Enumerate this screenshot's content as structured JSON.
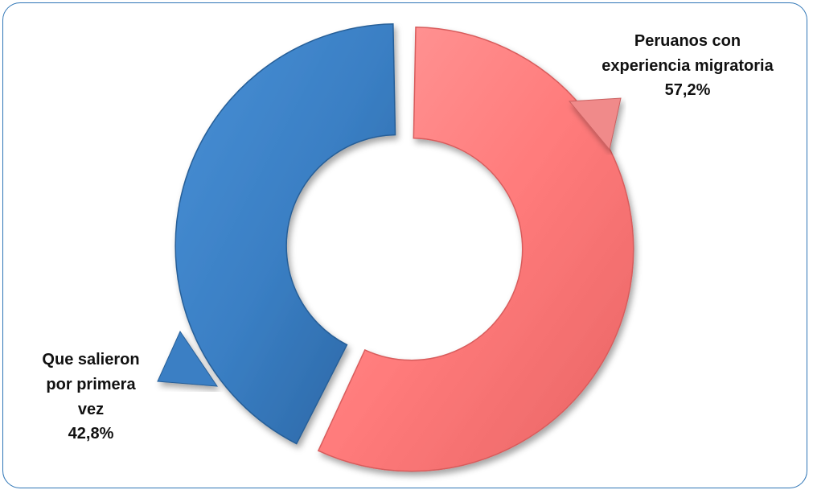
{
  "chart_data": {
    "type": "pie",
    "variant": "donut",
    "title": "",
    "slices": [
      {
        "label_lines": [
          "Peruanos con",
          "experiencia migratoria"
        ],
        "value_label": "57,2%",
        "value": 57.2,
        "color": "#ff7b7b"
      },
      {
        "label_lines": [
          "Que salieron",
          "por primera",
          "vez"
        ],
        "value_label": "42,8%",
        "value": 42.8,
        "color": "#3a7fc4"
      }
    ],
    "legend": "none",
    "data_labels": "outside-with-callout"
  }
}
